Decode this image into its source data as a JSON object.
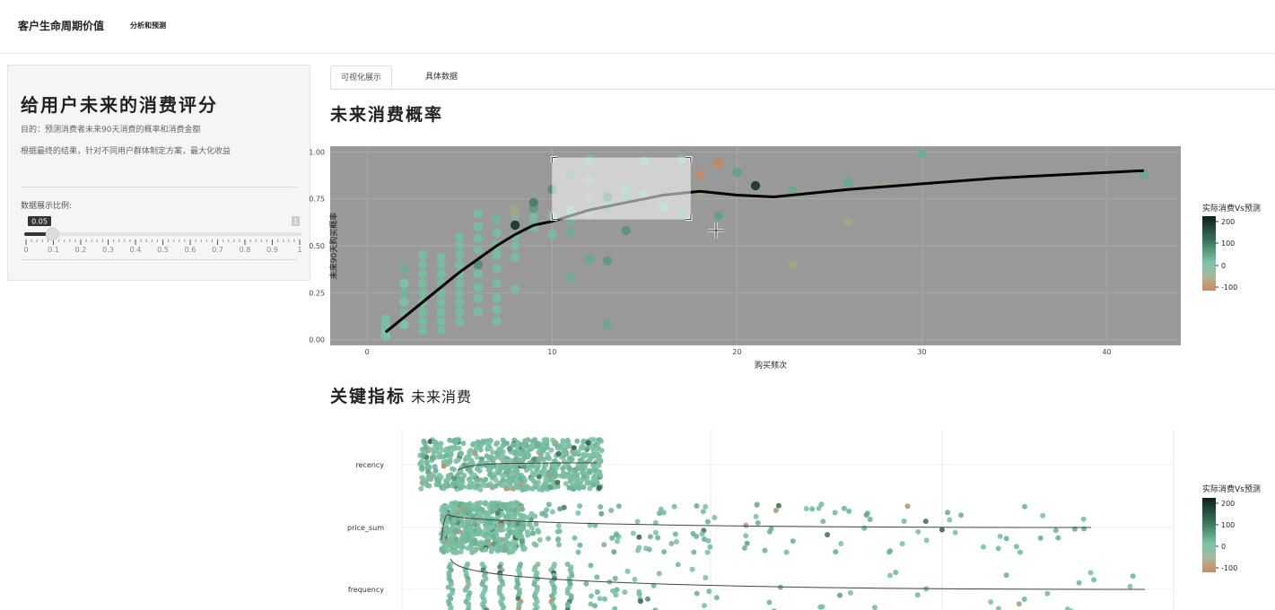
{
  "navbar": {
    "title": "客户生命周期价值",
    "subtitle": "分析和预测"
  },
  "sidebar": {
    "title": "给用户未来的消费评分",
    "desc1": "目的：预测消费者未来90天消费的概率和消费金额",
    "desc2": "根据最终的结果，针对不同用户群体制定方案，最大化收益",
    "slider": {
      "label": "数据展示比例:",
      "value": 0.05,
      "value_label": "0.05",
      "min": 0,
      "max": 1,
      "max_label": "1",
      "ticks": [
        "0",
        "0.1",
        "0.2",
        "0.3",
        "0.4",
        "0.5",
        "0.6",
        "0.7",
        "0.8",
        "0.9",
        "1"
      ]
    }
  },
  "tabs": [
    {
      "label": "可视化展示",
      "active": true
    },
    {
      "label": "具体数据",
      "active": false
    }
  ],
  "headings": {
    "probability": "未来消费概率",
    "key_metrics": "关键指标",
    "key_metrics_sub": "未来消费"
  },
  "colors": {
    "low": "#c8855e",
    "mid": "#7cc4a8",
    "high": "#102820",
    "panel_bg": "#999999"
  },
  "colorbar": {
    "title": "实际消费Vs预测",
    "ticks": [
      "200",
      "100",
      "0",
      "-100"
    ]
  },
  "chart_data": [
    {
      "type": "scatter",
      "xlabel": "购买频次",
      "ylabel": "未来90天购买概率",
      "xlim": [
        -2,
        44
      ],
      "ylim": [
        -0.03,
        1.03
      ],
      "xticks": [
        "0",
        "10",
        "20",
        "30",
        "40"
      ],
      "yticks": [
        "0.00",
        "0.25",
        "0.50",
        "0.75",
        "1.00"
      ],
      "grid": true,
      "color_by": "实际消费Vs预测",
      "legend": "right",
      "selection_box": {
        "x": [
          10,
          17.5
        ],
        "y": [
          0.64,
          0.97
        ]
      },
      "smooth_line": {
        "x": [
          1,
          2,
          3,
          4,
          5,
          6,
          7,
          8,
          9,
          10,
          11,
          12,
          14,
          16,
          18,
          20,
          22,
          24,
          26,
          30,
          34,
          38,
          42
        ],
        "y": [
          0.04,
          0.12,
          0.2,
          0.28,
          0.36,
          0.43,
          0.5,
          0.56,
          0.61,
          0.63,
          0.66,
          0.69,
          0.73,
          0.77,
          0.79,
          0.77,
          0.76,
          0.78,
          0.8,
          0.83,
          0.86,
          0.88,
          0.9
        ]
      },
      "points": [
        [
          1,
          0.02,
          0
        ],
        [
          1,
          0.05,
          0
        ],
        [
          1,
          0.08,
          10
        ],
        [
          1,
          0.11,
          5
        ],
        [
          2,
          0.08,
          0
        ],
        [
          2,
          0.14,
          10
        ],
        [
          2,
          0.2,
          5
        ],
        [
          2,
          0.25,
          20
        ],
        [
          2,
          0.3,
          0
        ],
        [
          2,
          0.38,
          30
        ],
        [
          3,
          0.05,
          10
        ],
        [
          3,
          0.1,
          10
        ],
        [
          3,
          0.15,
          10
        ],
        [
          3,
          0.2,
          10
        ],
        [
          3,
          0.25,
          10
        ],
        [
          3,
          0.3,
          10
        ],
        [
          3,
          0.35,
          10
        ],
        [
          3,
          0.4,
          10
        ],
        [
          3,
          0.45,
          10
        ],
        [
          4,
          0.05,
          10
        ],
        [
          4,
          0.1,
          10
        ],
        [
          4,
          0.15,
          10
        ],
        [
          4,
          0.2,
          10
        ],
        [
          4,
          0.25,
          10
        ],
        [
          4,
          0.3,
          10
        ],
        [
          4,
          0.35,
          10
        ],
        [
          4,
          0.4,
          10
        ],
        [
          4,
          0.44,
          10
        ],
        [
          5,
          0.1,
          10
        ],
        [
          5,
          0.15,
          10
        ],
        [
          5,
          0.2,
          10
        ],
        [
          5,
          0.25,
          10
        ],
        [
          5,
          0.3,
          10
        ],
        [
          5,
          0.35,
          10
        ],
        [
          5,
          0.4,
          10
        ],
        [
          5,
          0.45,
          10
        ],
        [
          5,
          0.5,
          10
        ],
        [
          5,
          0.55,
          10
        ],
        [
          6,
          0.15,
          10
        ],
        [
          6,
          0.22,
          10
        ],
        [
          6,
          0.28,
          10
        ],
        [
          6,
          0.35,
          10
        ],
        [
          6,
          0.4,
          80
        ],
        [
          6,
          0.48,
          10
        ],
        [
          6,
          0.54,
          10
        ],
        [
          6,
          0.6,
          10
        ],
        [
          6,
          0.67,
          10
        ],
        [
          7,
          0.1,
          10
        ],
        [
          7,
          0.16,
          10
        ],
        [
          7,
          0.22,
          10
        ],
        [
          7,
          0.3,
          10
        ],
        [
          7,
          0.38,
          10
        ],
        [
          7,
          0.45,
          10
        ],
        [
          7,
          0.5,
          10
        ],
        [
          7,
          0.57,
          10
        ],
        [
          7,
          0.64,
          20
        ],
        [
          8,
          0.27,
          10
        ],
        [
          8,
          0.44,
          10
        ],
        [
          8,
          0.5,
          10
        ],
        [
          8,
          0.55,
          10
        ],
        [
          8,
          0.61,
          200
        ],
        [
          8,
          0.66,
          -40
        ],
        [
          8,
          0.69,
          -60
        ],
        [
          9,
          0.6,
          10
        ],
        [
          9,
          0.65,
          10
        ],
        [
          9,
          0.7,
          60
        ],
        [
          9,
          0.73,
          100
        ],
        [
          10,
          0.56,
          10
        ],
        [
          10,
          0.66,
          -30
        ],
        [
          10,
          0.8,
          80
        ],
        [
          11,
          0.33,
          30
        ],
        [
          11,
          0.57,
          30
        ],
        [
          11,
          0.64,
          20
        ],
        [
          11,
          0.69,
          -10
        ],
        [
          11,
          0.88,
          40
        ],
        [
          12,
          0.43,
          40
        ],
        [
          12,
          0.67,
          -20
        ],
        [
          12,
          0.75,
          -30
        ],
        [
          12,
          0.85,
          -30
        ],
        [
          12,
          0.96,
          10
        ],
        [
          13,
          0.08,
          40
        ],
        [
          13,
          0.42,
          60
        ],
        [
          13,
          0.7,
          40
        ],
        [
          13,
          0.74,
          20
        ],
        [
          13,
          0.76,
          80
        ],
        [
          14,
          0.58,
          70
        ],
        [
          14,
          0.75,
          30
        ],
        [
          14,
          0.8,
          10
        ],
        [
          15,
          0.95,
          -5
        ],
        [
          15,
          0.77,
          -5
        ],
        [
          16,
          0.71,
          5
        ],
        [
          17,
          0.67,
          30
        ],
        [
          17,
          0.96,
          -15
        ],
        [
          18,
          0.78,
          -60
        ],
        [
          18,
          0.88,
          -120
        ],
        [
          19,
          0.66,
          50
        ],
        [
          19,
          0.94,
          -140
        ],
        [
          20,
          0.89,
          50
        ],
        [
          21,
          0.82,
          200
        ],
        [
          23,
          0.79,
          40
        ],
        [
          23,
          0.4,
          -60
        ],
        [
          26,
          0.84,
          40
        ],
        [
          26,
          0.63,
          -60
        ],
        [
          28,
          0.82,
          -70
        ],
        [
          30,
          0.99,
          30
        ],
        [
          42,
          0.88,
          40
        ]
      ]
    },
    {
      "type": "scatter",
      "categories": [
        "recency",
        "price_sum",
        "frequency"
      ],
      "color_by": "实际消费Vs预测",
      "legend": "right"
    }
  ]
}
